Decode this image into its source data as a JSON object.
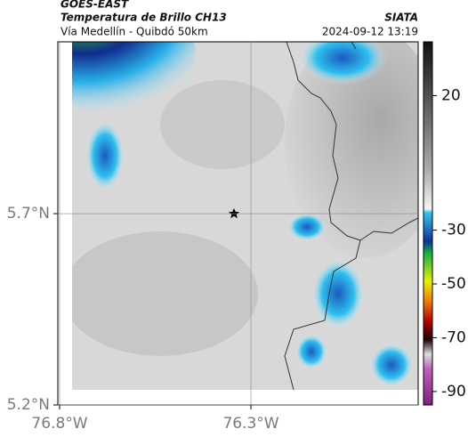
{
  "chart_data": {
    "type": "map",
    "title": "GOES-EAST",
    "subtitle": "Temperatura de Brillo CH13",
    "region": "Vía Medellín - Quibdó 50km",
    "source": "SIATA",
    "timestamp": "2024-09-12 13:19",
    "xlim": [
      -76.8,
      -75.863
    ],
    "ylim": [
      5.2,
      6.149
    ],
    "xticks": [
      {
        "value": -76.8,
        "label": "76.8°W"
      },
      {
        "value": -76.3,
        "label": "76.3°W"
      }
    ],
    "yticks": [
      {
        "value": 5.7,
        "label": "5.7°N"
      },
      {
        "value": 5.2,
        "label": "5.2°N"
      }
    ],
    "grid": true,
    "colorbar": {
      "lim": [
        40,
        -95
      ],
      "ticks": [
        20,
        -30,
        -50,
        -70,
        -90
      ]
    }
  }
}
